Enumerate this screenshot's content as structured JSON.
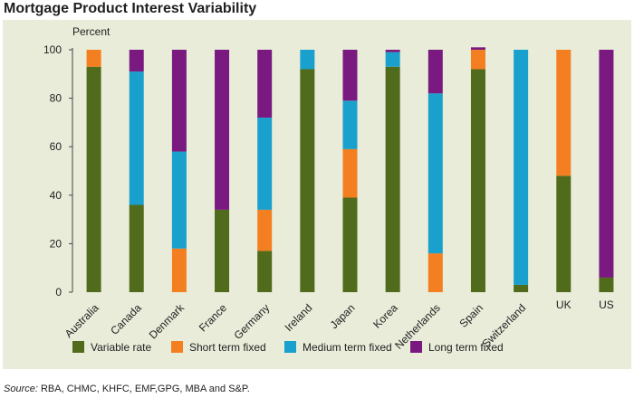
{
  "chart_data": {
    "type": "bar",
    "stacked": true,
    "title": "Mortgage Product Interest Variability",
    "ylabel": "Percent",
    "xlabel": "",
    "ylim": [
      0,
      100
    ],
    "yticks": [
      0,
      20,
      40,
      60,
      80,
      100
    ],
    "grid": false,
    "legend_position": "bottom",
    "categories": [
      "Australia",
      "Canada",
      "Denmark",
      "France",
      "Germany",
      "Ireland",
      "Japan",
      "Korea",
      "Netherlands",
      "Spain",
      "Switzerland",
      "UK",
      "US"
    ],
    "series": [
      {
        "name": "Variable rate",
        "color": "#4f6b1b",
        "values": [
          93,
          36,
          0,
          34,
          17,
          92,
          39,
          93,
          0,
          92,
          3,
          48,
          6
        ]
      },
      {
        "name": "Short term fixed",
        "color": "#f47f20",
        "values": [
          7,
          0,
          18,
          0,
          17,
          0,
          20,
          0,
          16,
          8,
          0,
          52,
          0
        ]
      },
      {
        "name": "Medium term fixed",
        "color": "#1aa0cc",
        "values": [
          0,
          55,
          40,
          0,
          38,
          8,
          20,
          6,
          66,
          0,
          97,
          0,
          0
        ]
      },
      {
        "name": "Long term fixed",
        "color": "#7a1a80",
        "values": [
          0,
          9,
          42,
          66,
          28,
          0,
          21,
          1,
          18,
          1,
          0,
          0,
          94
        ]
      }
    ]
  },
  "source": {
    "label": "Source:",
    "text": "RBA, CHMC, KHFC, EMF,GPG, MBA and S&P."
  }
}
